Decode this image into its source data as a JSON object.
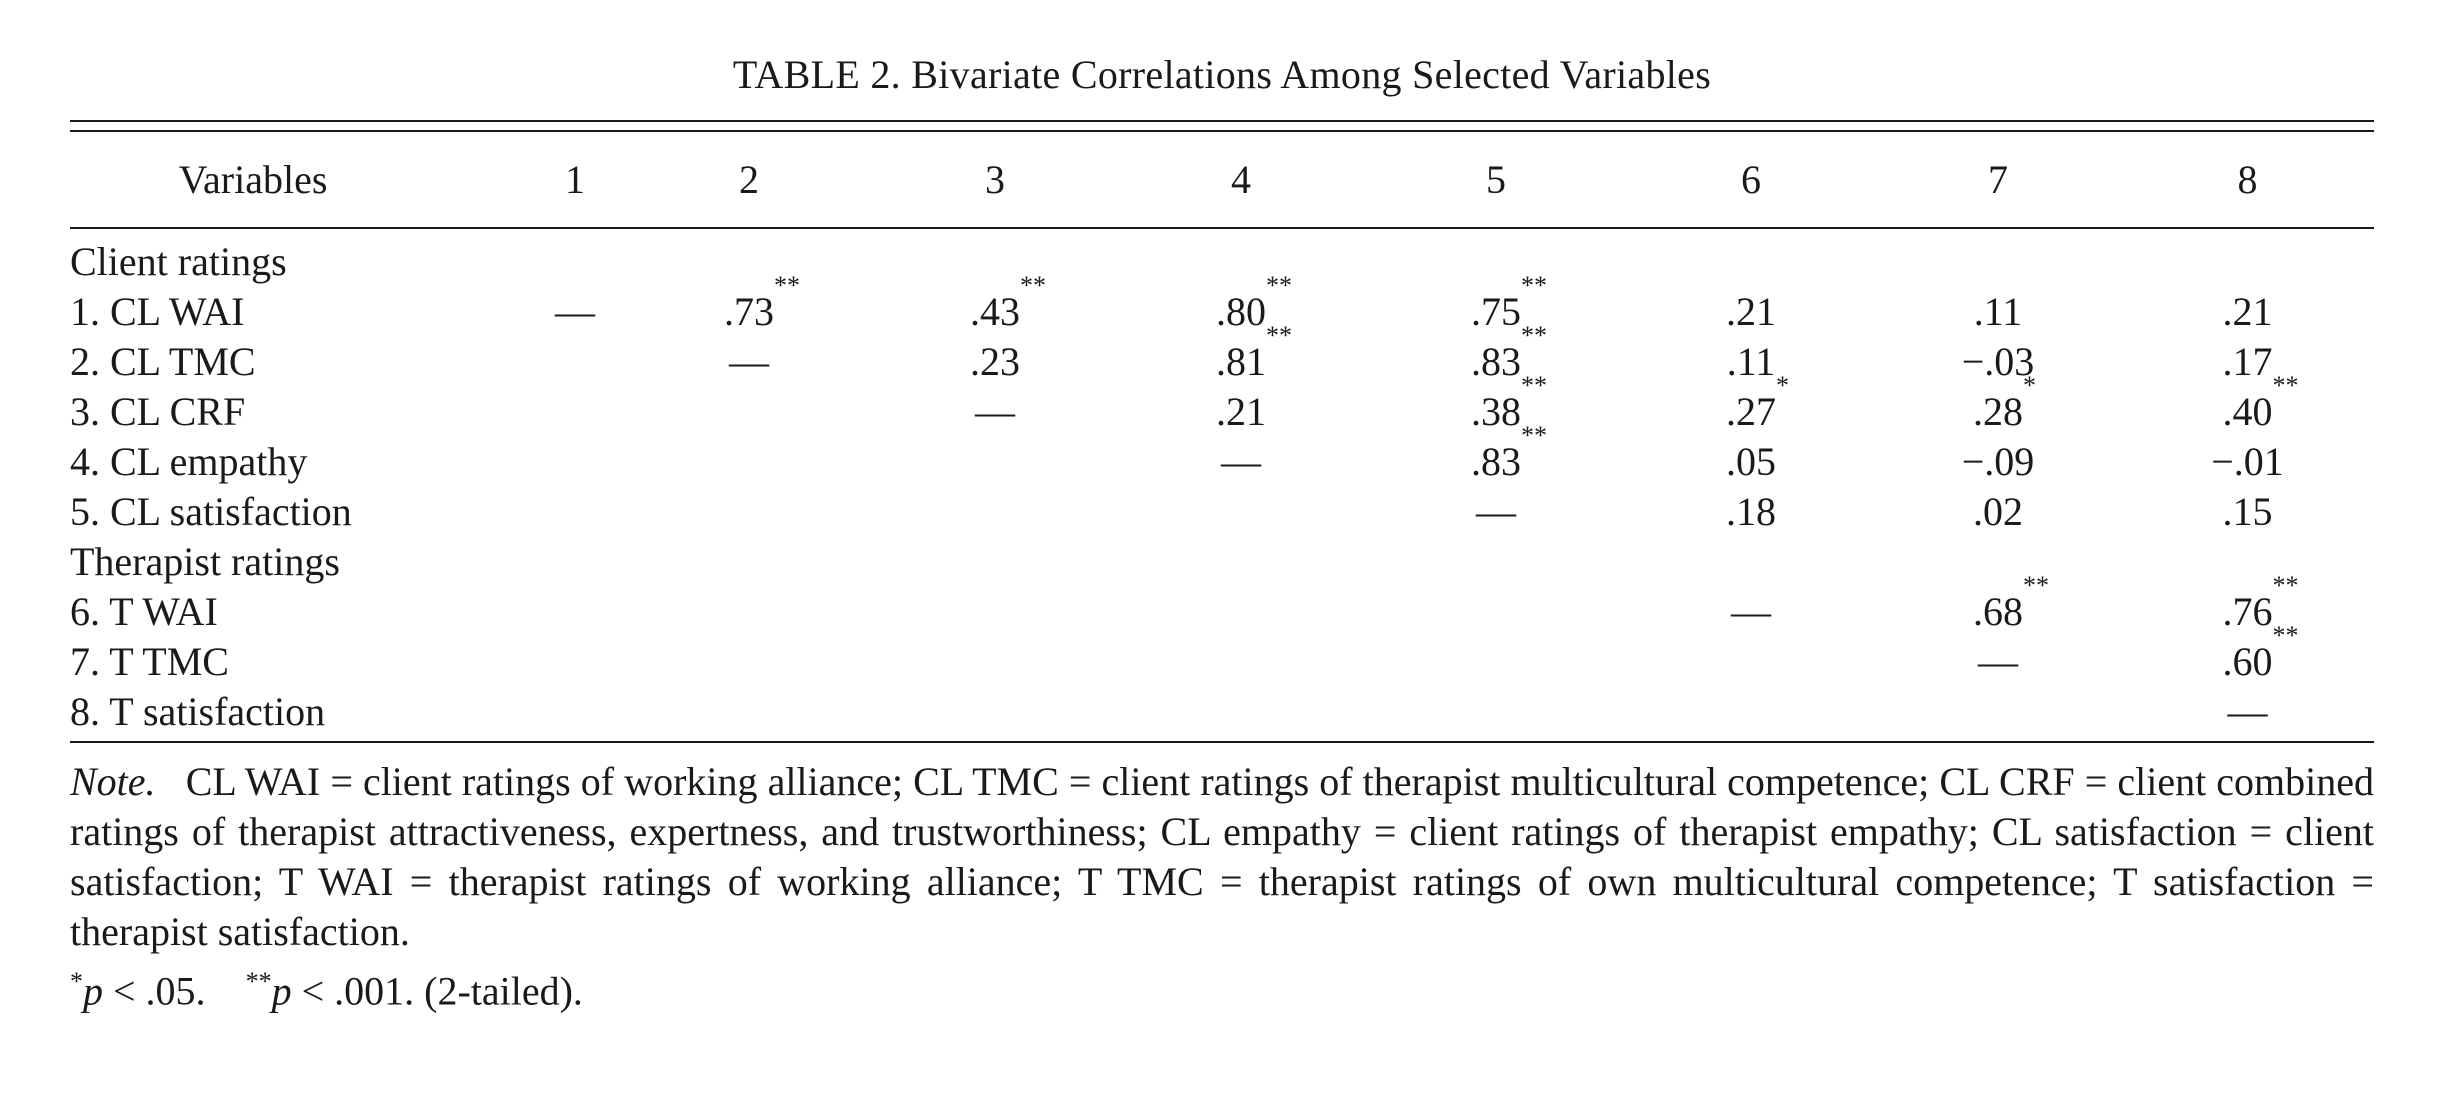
{
  "table": {
    "title": "TABLE 2. Bivariate Correlations Among Selected Variables",
    "column_headers": [
      "Variables",
      "1",
      "2",
      "3",
      "4",
      "5",
      "6",
      "7",
      "8"
    ],
    "groups": [
      {
        "label": "Client ratings",
        "rows": [
          {
            "label": "1. CL WAI",
            "cells": [
              {
                "v": "—",
                "s": ""
              },
              {
                "v": ".73",
                "s": "**"
              },
              {
                "v": ".43",
                "s": "**"
              },
              {
                "v": ".80",
                "s": "**"
              },
              {
                "v": ".75",
                "s": "**"
              },
              {
                "v": ".21",
                "s": ""
              },
              {
                "v": ".11",
                "s": ""
              },
              {
                "v": ".21",
                "s": ""
              }
            ]
          },
          {
            "label": "2. CL TMC",
            "cells": [
              {
                "v": "",
                "s": ""
              },
              {
                "v": "—",
                "s": ""
              },
              {
                "v": ".23",
                "s": ""
              },
              {
                "v": ".81",
                "s": "**"
              },
              {
                "v": ".83",
                "s": "**"
              },
              {
                "v": ".11",
                "s": ""
              },
              {
                "v": "−.03",
                "s": ""
              },
              {
                "v": ".17",
                "s": ""
              }
            ]
          },
          {
            "label": "3. CL CRF",
            "cells": [
              {
                "v": "",
                "s": ""
              },
              {
                "v": "",
                "s": ""
              },
              {
                "v": "—",
                "s": ""
              },
              {
                "v": ".21",
                "s": ""
              },
              {
                "v": ".38",
                "s": "**"
              },
              {
                "v": ".27",
                "s": "*"
              },
              {
                "v": ".28",
                "s": "*"
              },
              {
                "v": ".40",
                "s": "**"
              }
            ]
          },
          {
            "label": "4. CL empathy",
            "cells": [
              {
                "v": "",
                "s": ""
              },
              {
                "v": "",
                "s": ""
              },
              {
                "v": "",
                "s": ""
              },
              {
                "v": "—",
                "s": ""
              },
              {
                "v": ".83",
                "s": "**"
              },
              {
                "v": ".05",
                "s": ""
              },
              {
                "v": "−.09",
                "s": ""
              },
              {
                "v": "−.01",
                "s": ""
              }
            ]
          },
          {
            "label": "5. CL satisfaction",
            "cells": [
              {
                "v": "",
                "s": ""
              },
              {
                "v": "",
                "s": ""
              },
              {
                "v": "",
                "s": ""
              },
              {
                "v": "",
                "s": ""
              },
              {
                "v": "—",
                "s": ""
              },
              {
                "v": ".18",
                "s": ""
              },
              {
                "v": ".02",
                "s": ""
              },
              {
                "v": ".15",
                "s": ""
              }
            ]
          }
        ]
      },
      {
        "label": "Therapist ratings",
        "rows": [
          {
            "label": "6. T WAI",
            "cells": [
              {
                "v": "",
                "s": ""
              },
              {
                "v": "",
                "s": ""
              },
              {
                "v": "",
                "s": ""
              },
              {
                "v": "",
                "s": ""
              },
              {
                "v": "",
                "s": ""
              },
              {
                "v": "—",
                "s": ""
              },
              {
                "v": ".68",
                "s": "**"
              },
              {
                "v": ".76",
                "s": "**"
              }
            ]
          },
          {
            "label": "7. T TMC",
            "cells": [
              {
                "v": "",
                "s": ""
              },
              {
                "v": "",
                "s": ""
              },
              {
                "v": "",
                "s": ""
              },
              {
                "v": "",
                "s": ""
              },
              {
                "v": "",
                "s": ""
              },
              {
                "v": "",
                "s": ""
              },
              {
                "v": "—",
                "s": ""
              },
              {
                "v": ".60",
                "s": "**"
              }
            ]
          },
          {
            "label": "8. T satisfaction",
            "cells": [
              {
                "v": "",
                "s": ""
              },
              {
                "v": "",
                "s": ""
              },
              {
                "v": "",
                "s": ""
              },
              {
                "v": "",
                "s": ""
              },
              {
                "v": "",
                "s": ""
              },
              {
                "v": "",
                "s": ""
              },
              {
                "v": "",
                "s": ""
              },
              {
                "v": "—",
                "s": ""
              }
            ]
          }
        ]
      }
    ],
    "note_label": "Note.",
    "note_text": "CL WAI = client ratings of working alliance; CL TMC = client ratings of therapist multicultural competence; CL CRF = client combined ratings of therapist attractiveness, expertness, and trustworthiness; CL empathy = client ratings of therapist empathy; CL satisfaction = client satisfaction; T WAI = therapist ratings of working alliance; T TMC = therapist ratings of own multicultural competence; T satisfaction = therapist satisfaction.",
    "sig1_mark": "*",
    "sig1_p": "p",
    "sig1_text": " < .05.",
    "sig2_mark": "**",
    "sig2_p": "p",
    "sig2_text": " < .001. (2-tailed)."
  }
}
